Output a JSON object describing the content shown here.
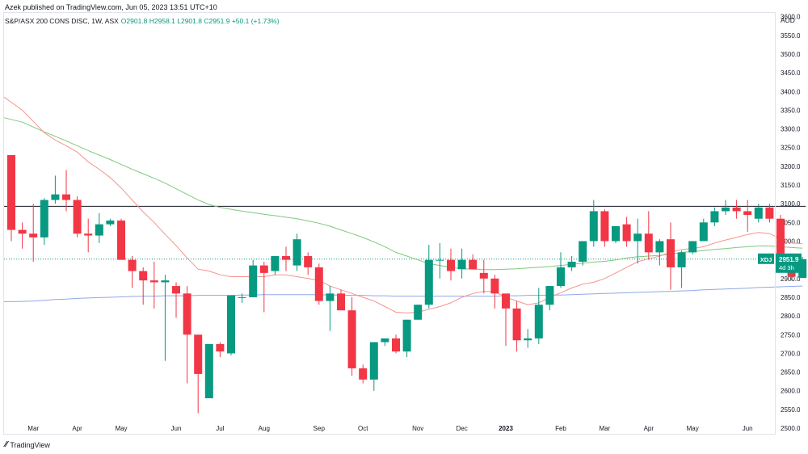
{
  "header": {
    "published": "Azek published on TradingView.com, Jun 05, 2023 13:51 UTC+10"
  },
  "legend": {
    "symbol": "S&P/ASX 200 CONS DISC, 1W, ASX",
    "ohlc": "O2901.8 H2958.1 L2901.8 C2951.9 +50.1 (+1.73%)"
  },
  "currency": "AUD",
  "price_tag": {
    "value": "2951.9",
    "ticker": "XDJ",
    "countdown": "4d 3h"
  },
  "footer": {
    "brand": "TradingView"
  },
  "colors": {
    "up": "#089981",
    "down": "#f23645",
    "ma_fast": "#f7928c",
    "ma_mid": "#7ec97e",
    "ma_slow": "#8fa8e8",
    "hline": "#131722"
  },
  "chart_data": {
    "type": "candlestick",
    "interval": "1W",
    "y_ticks": [
      2500,
      2550,
      2600,
      2650,
      2700,
      2750,
      2800,
      2850,
      2900,
      2950,
      3000,
      3050,
      3100,
      3150,
      3200,
      3250,
      3300,
      3350,
      3400,
      3450,
      3500,
      3550,
      3600
    ],
    "y_tick_labels": [
      "2500.0",
      "2550.0",
      "2600.0",
      "2650.0",
      "2700.0",
      "2750.0",
      "2800.0",
      "2850.0",
      "2900.0",
      "2950.0",
      "3000.0",
      "3050.0",
      "3100.0",
      "3150.0",
      "3200.0",
      "3250.0",
      "3300.0",
      "3350.0",
      "3400.0",
      "3450.0",
      "3500.0",
      "3550.0",
      "3600.0"
    ],
    "ylim": [
      2485,
      3610
    ],
    "x_labels": [
      {
        "label": "Mar",
        "bar": 2
      },
      {
        "label": "Apr",
        "bar": 6
      },
      {
        "label": "May",
        "bar": 10
      },
      {
        "label": "Jun",
        "bar": 15
      },
      {
        "label": "Jul",
        "bar": 19
      },
      {
        "label": "Aug",
        "bar": 23
      },
      {
        "label": "Sep",
        "bar": 28
      },
      {
        "label": "Oct",
        "bar": 32
      },
      {
        "label": "Nov",
        "bar": 37
      },
      {
        "label": "Dec",
        "bar": 41
      },
      {
        "label": "2023",
        "bar": 45
      },
      {
        "label": "Feb",
        "bar": 50
      },
      {
        "label": "Mar",
        "bar": 54
      },
      {
        "label": "Apr",
        "bar": 58
      },
      {
        "label": "May",
        "bar": 62
      },
      {
        "label": "Jun",
        "bar": 67
      }
    ],
    "candles": [
      [
        3230,
        3230,
        3000,
        3030
      ],
      [
        3030,
        3050,
        2980,
        3020
      ],
      [
        3020,
        3100,
        2945,
        3010
      ],
      [
        3010,
        3115,
        2990,
        3110
      ],
      [
        3110,
        3175,
        3100,
        3125
      ],
      [
        3125,
        3190,
        3080,
        3110
      ],
      [
        3110,
        3120,
        3010,
        3020
      ],
      [
        3020,
        3060,
        2970,
        3015
      ],
      [
        3015,
        3075,
        2995,
        3045
      ],
      [
        3045,
        3060,
        3040,
        3055
      ],
      [
        3055,
        3060,
        2955,
        2950
      ],
      [
        2950,
        2960,
        2875,
        2920
      ],
      [
        2920,
        2930,
        2830,
        2895
      ],
      [
        2895,
        2945,
        2820,
        2890
      ],
      [
        2890,
        2910,
        2680,
        2895
      ],
      [
        2880,
        2890,
        2795,
        2860
      ],
      [
        2860,
        2880,
        2620,
        2750
      ],
      [
        2750,
        2750,
        2540,
        2645
      ],
      [
        2580,
        2725,
        2580,
        2725
      ],
      [
        2725,
        2730,
        2690,
        2705
      ],
      [
        2700,
        2855,
        2695,
        2855
      ],
      [
        2850,
        2860,
        2835,
        2850
      ],
      [
        2850,
        2950,
        2850,
        2935
      ],
      [
        2935,
        2945,
        2810,
        2915
      ],
      [
        2920,
        2960,
        2910,
        2960
      ],
      [
        2960,
        2985,
        2920,
        2950
      ],
      [
        2935,
        3020,
        2920,
        3005
      ],
      [
        2960,
        2970,
        2910,
        2930
      ],
      [
        2930,
        2940,
        2830,
        2840
      ],
      [
        2840,
        2880,
        2760,
        2860
      ],
      [
        2860,
        2870,
        2820,
        2815
      ],
      [
        2815,
        2850,
        2640,
        2660
      ],
      [
        2660,
        2670,
        2620,
        2630
      ],
      [
        2630,
        2730,
        2600,
        2730
      ],
      [
        2730,
        2740,
        2720,
        2740
      ],
      [
        2740,
        2750,
        2700,
        2705
      ],
      [
        2705,
        2790,
        2690,
        2790
      ],
      [
        2790,
        2830,
        2790,
        2830
      ],
      [
        2830,
        2990,
        2820,
        2950
      ],
      [
        2950,
        2995,
        2900,
        2950
      ],
      [
        2950,
        2980,
        2895,
        2920
      ],
      [
        2925,
        2980,
        2900,
        2950
      ],
      [
        2950,
        2965,
        2930,
        2925
      ],
      [
        2915,
        2950,
        2860,
        2900
      ],
      [
        2900,
        2910,
        2820,
        2860
      ],
      [
        2860,
        2850,
        2720,
        2820
      ],
      [
        2820,
        2840,
        2705,
        2735
      ],
      [
        2735,
        2765,
        2715,
        2740
      ],
      [
        2740,
        2875,
        2725,
        2830
      ],
      [
        2830,
        2880,
        2815,
        2880
      ],
      [
        2880,
        2970,
        2875,
        2930
      ],
      [
        2930,
        2960,
        2920,
        2945
      ],
      [
        2945,
        3000,
        2935,
        3000
      ],
      [
        3000,
        3110,
        2985,
        3080
      ],
      [
        3080,
        3085,
        2985,
        3000
      ],
      [
        3000,
        3040,
        2995,
        3040
      ],
      [
        3045,
        3065,
        2985,
        3000
      ],
      [
        3000,
        3060,
        2940,
        3020
      ],
      [
        3020,
        3080,
        2950,
        2970
      ],
      [
        2970,
        3005,
        2935,
        3000
      ],
      [
        3005,
        3050,
        2870,
        2930
      ],
      [
        2930,
        2975,
        2875,
        2970
      ],
      [
        2970,
        3000,
        2965,
        3000
      ],
      [
        3000,
        3060,
        3000,
        3050
      ],
      [
        3050,
        3090,
        3040,
        3080
      ],
      [
        3080,
        3110,
        3070,
        3090
      ],
      [
        3090,
        3110,
        3060,
        3080
      ],
      [
        3080,
        3110,
        3025,
        3070
      ],
      [
        3060,
        3100,
        3050,
        3090
      ],
      [
        3090,
        3100,
        3050,
        3060
      ],
      [
        3060,
        3070,
        2950,
        2955
      ],
      [
        2955,
        2965,
        2895,
        2905
      ],
      [
        2901.8,
        2958.1,
        2901.8,
        2951.9
      ]
    ],
    "ma_fast": [
      3385,
      3350,
      3320,
      3290,
      3270,
      3255,
      3238,
      3212,
      3192,
      3170,
      3142,
      3110,
      3078,
      3050,
      3018,
      2988,
      2955,
      2925,
      2920,
      2910,
      2905,
      2905,
      2905,
      2905,
      2910,
      2910,
      2905,
      2900,
      2895,
      2880,
      2870,
      2860,
      2850,
      2840,
      2825,
      2810,
      2808,
      2810,
      2818,
      2825,
      2835,
      2850,
      2860,
      2866,
      2865,
      2850,
      2840,
      2830,
      2835,
      2850,
      2862,
      2875,
      2885,
      2890,
      2900,
      2915,
      2930,
      2945,
      2953,
      2960,
      2970,
      2978,
      2980,
      2985,
      2995,
      3003,
      3010,
      3018,
      3023,
      3020,
      3006,
      2995,
      2993
    ],
    "ma_mid": [
      3330,
      3318,
      3305,
      3292,
      3280,
      3268,
      3255,
      3242,
      3230,
      3218,
      3205,
      3192,
      3180,
      3168,
      3155,
      3140,
      3125,
      3110,
      3098,
      3090,
      3085,
      3080,
      3076,
      3072,
      3068,
      3064,
      3060,
      3054,
      3048,
      3040,
      3030,
      3020,
      3010,
      2998,
      2985,
      2970,
      2960,
      2950,
      2940,
      2935,
      2930,
      2926,
      2925,
      2924,
      2924,
      2925,
      2926,
      2928,
      2930,
      2932,
      2935,
      2938,
      2941,
      2944,
      2946,
      2950,
      2955,
      2958,
      2960,
      2962,
      2965,
      2970,
      2972,
      2975,
      2978,
      2980,
      2983,
      2985,
      2987,
      2987,
      2985,
      2983,
      2981
    ],
    "ma_slow": [
      2838,
      2839,
      2840,
      2842,
      2844,
      2845,
      2847,
      2848,
      2849,
      2850,
      2851,
      2852,
      2853,
      2853,
      2854,
      2854,
      2854,
      2855,
      2855,
      2855,
      2855,
      2856,
      2856,
      2857,
      2857,
      2857,
      2857,
      2857,
      2857,
      2856,
      2856,
      2855,
      2855,
      2854,
      2854,
      2853,
      2853,
      2853,
      2853,
      2853,
      2853,
      2853,
      2853,
      2853,
      2853,
      2854,
      2854,
      2855,
      2855,
      2856,
      2856,
      2857,
      2858,
      2859,
      2860,
      2861,
      2862,
      2863,
      2864,
      2865,
      2866,
      2867,
      2868,
      2870,
      2871,
      2872,
      2873,
      2874,
      2876,
      2877,
      2878,
      2879,
      2880
    ],
    "resistance": 3093,
    "last_price": 2951.9
  }
}
